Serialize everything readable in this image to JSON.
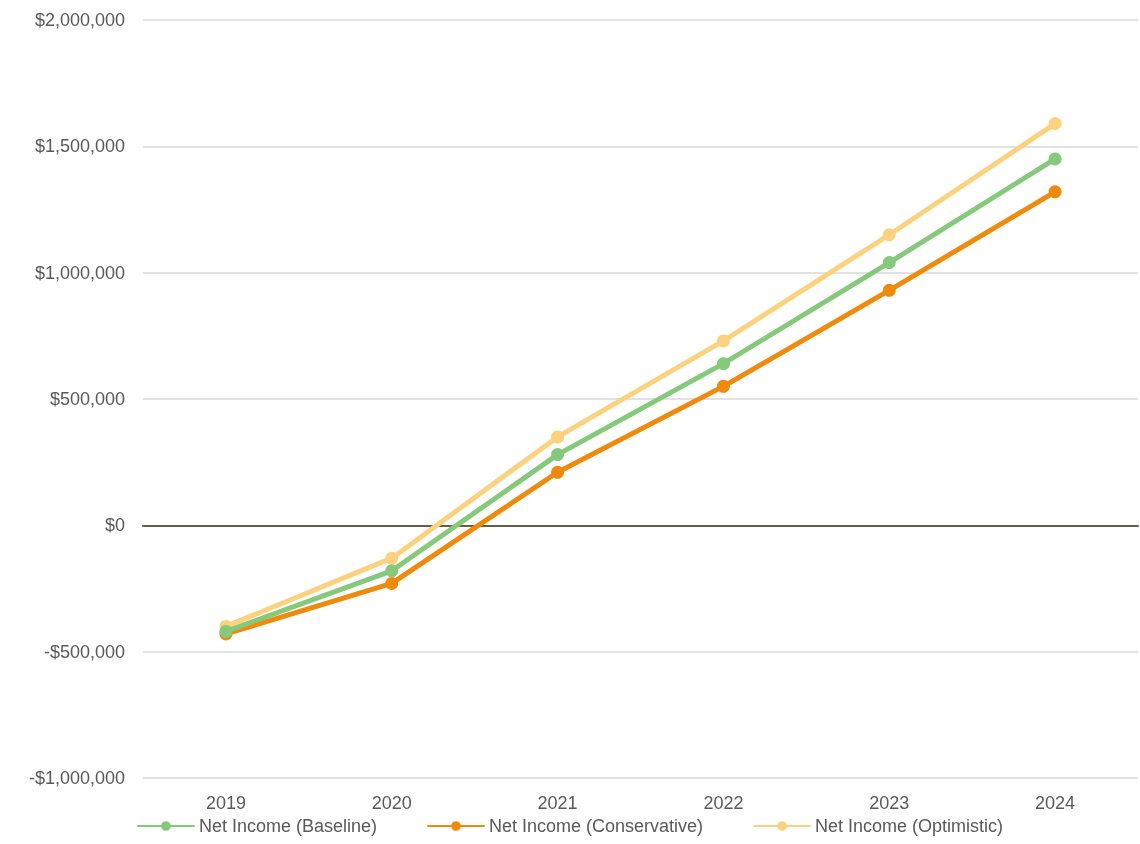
{
  "chart_data": {
    "type": "line",
    "categories": [
      "2019",
      "2020",
      "2021",
      "2022",
      "2023",
      "2024"
    ],
    "series": [
      {
        "name": "Net Income (Baseline)",
        "color": "#85c97a",
        "values": [
          -420000,
          -180000,
          280000,
          640000,
          1040000,
          1450000
        ]
      },
      {
        "name": "Net Income (Conservative)",
        "color": "#f08a0c",
        "values": [
          -430000,
          -230000,
          210000,
          550000,
          930000,
          1320000
        ]
      },
      {
        "name": "Net Income (Optimistic)",
        "color": "#fcd27e",
        "values": [
          -400000,
          -130000,
          350000,
          730000,
          1150000,
          1590000
        ]
      }
    ],
    "ylim": [
      -1000000,
      2000000
    ],
    "yticks": [
      {
        "value": -1000000,
        "label": "-$1,000,000"
      },
      {
        "value": -500000,
        "label": "-$500,000"
      },
      {
        "value": 0,
        "label": "$0"
      },
      {
        "value": 500000,
        "label": "$500,000"
      },
      {
        "value": 1000000,
        "label": "$1,000,000"
      },
      {
        "value": 1500000,
        "label": "$1,500,000"
      },
      {
        "value": 2000000,
        "label": "$2,000,000"
      }
    ],
    "grid": "y",
    "legend": "bottom",
    "marker": "circle",
    "line_style": "solid"
  }
}
